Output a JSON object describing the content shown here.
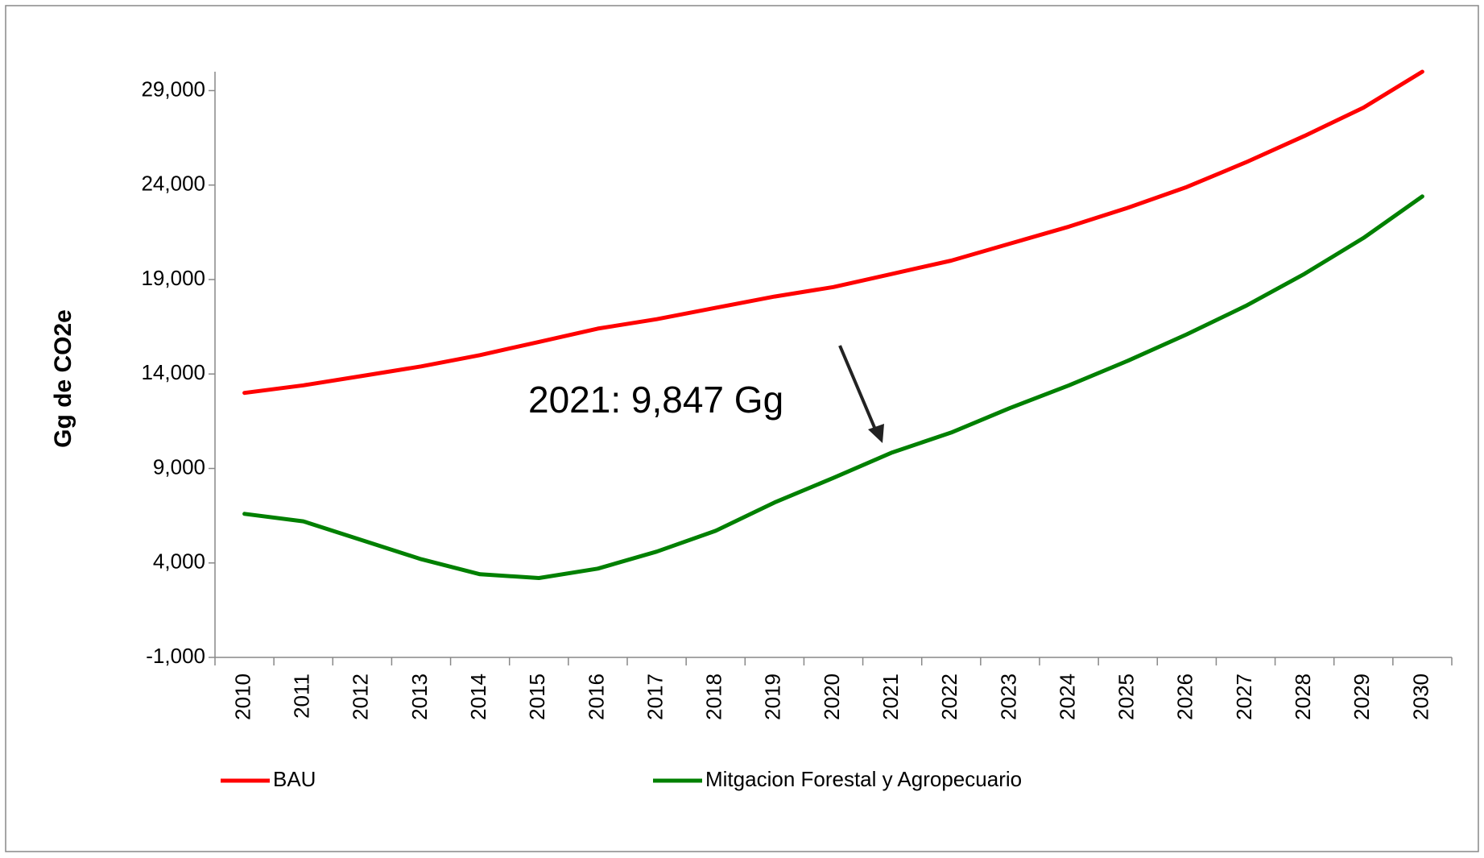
{
  "chart_data": {
    "type": "line",
    "y_label": "Gg de CO2e",
    "annotation": "2021: 9,847 Gg",
    "categories": [
      "2010",
      "2011",
      "2012",
      "2013",
      "2014",
      "2015",
      "2016",
      "2017",
      "2018",
      "2019",
      "2020",
      "2021",
      "2022",
      "2023",
      "2024",
      "2025",
      "2026",
      "2027",
      "2028",
      "2029",
      "2030"
    ],
    "series": [
      {
        "name": "BAU",
        "color": "#ff0000",
        "values": [
          13000,
          13400,
          13900,
          14400,
          15000,
          15700,
          16400,
          16900,
          17500,
          18100,
          18600,
          19300,
          20000,
          20900,
          21800,
          22800,
          23900,
          25200,
          26600,
          28100,
          30000
        ]
      },
      {
        "name": "Mitgacion Forestal y Agropecuario",
        "color": "#008000",
        "values": [
          6600,
          6200,
          5200,
          4200,
          3400,
          3200,
          3700,
          4600,
          5700,
          7200,
          8500,
          9847,
          10900,
          12200,
          13400,
          14700,
          16100,
          17600,
          19300,
          21200,
          23400
        ]
      }
    ],
    "ylim": [
      -1000,
      30000
    ],
    "yticks": [
      {
        "value": -1000,
        "label": "-1,000"
      },
      {
        "value": 4000,
        "label": "4,000"
      },
      {
        "value": 9000,
        "label": "9,000"
      },
      {
        "value": 14000,
        "label": "14,000"
      },
      {
        "value": 19000,
        "label": "19,000"
      },
      {
        "value": 24000,
        "label": "24,000"
      },
      {
        "value": 29000,
        "label": "29,000"
      }
    ],
    "grid": false,
    "legend": "bottom"
  }
}
